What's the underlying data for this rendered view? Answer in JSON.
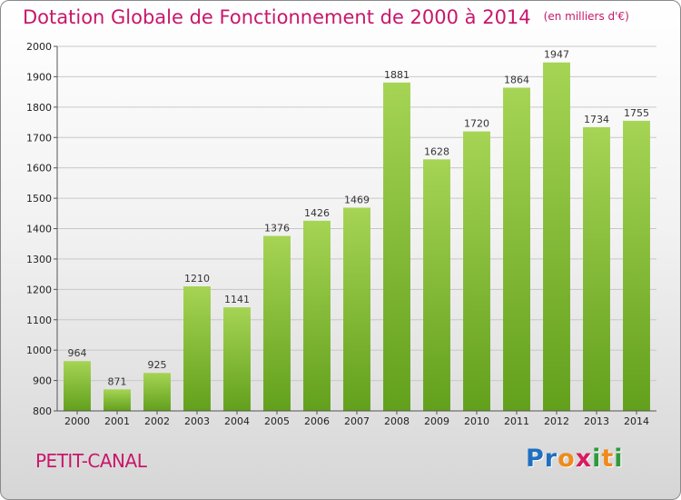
{
  "header": {
    "title": "Dotation Globale de Fonctionnement de 2000 à 2014",
    "unit": "(en milliers d'€)"
  },
  "footer": {
    "commune": "PETIT-CANAL",
    "logo_letters": [
      "P",
      "r",
      "o",
      "x",
      "i",
      "t",
      "i"
    ],
    "logo_colors": [
      "#1f6fc1",
      "#1f6fc1",
      "#f08a1c",
      "#d81b60",
      "#2f9a3a",
      "#f08a1c",
      "#2f9a3a"
    ]
  },
  "colors": {
    "bar_top": "#a6d455",
    "bar_bottom": "#62a01c",
    "grid": "#c8c8c8",
    "axis": "#555555"
  },
  "chart_data": {
    "type": "bar",
    "title": "Dotation Globale de Fonctionnement de 2000 à 2014",
    "subtitle": "(en milliers d'€)",
    "xlabel": "",
    "ylabel": "",
    "categories": [
      "2000",
      "2001",
      "2002",
      "2003",
      "2004",
      "2005",
      "2006",
      "2007",
      "2008",
      "2009",
      "2010",
      "2011",
      "2012",
      "2013",
      "2014"
    ],
    "values": [
      964,
      871,
      925,
      1210,
      1141,
      1376,
      1426,
      1469,
      1881,
      1628,
      1720,
      1864,
      1947,
      1734,
      1755
    ],
    "ylim": [
      800,
      2000
    ],
    "yticks": [
      800,
      900,
      1000,
      1100,
      1200,
      1300,
      1400,
      1500,
      1600,
      1700,
      1800,
      1900,
      2000
    ],
    "grid": true,
    "legend": "none"
  }
}
